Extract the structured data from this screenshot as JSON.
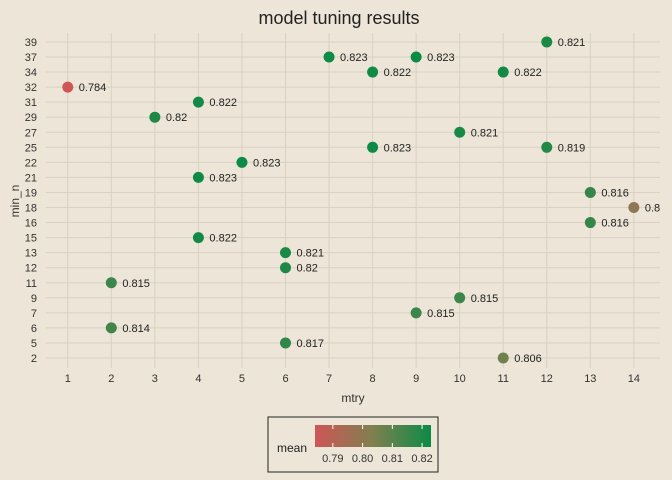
{
  "chart_data": {
    "type": "scatter",
    "title": "model tuning results",
    "xlabel": "mtry",
    "ylabel": "min_n",
    "x_ticks": [
      1,
      2,
      3,
      4,
      5,
      6,
      7,
      8,
      9,
      10,
      11,
      12,
      13,
      14
    ],
    "y_ticks": [
      2,
      5,
      6,
      7,
      9,
      11,
      12,
      13,
      15,
      16,
      18,
      19,
      21,
      22,
      25,
      27,
      29,
      31,
      32,
      34,
      37,
      39
    ],
    "grid": true,
    "legend": {
      "title": "mean",
      "placement": "bottom",
      "range": [
        0.784,
        0.823
      ],
      "ticks": [
        "0.79",
        "0.80",
        "0.81",
        "0.82"
      ],
      "colors": {
        "low": "#cf5656",
        "mid": "#7f8050",
        "high": "#0d8a45"
      }
    },
    "points": [
      {
        "mtry": 12,
        "min_n": 39,
        "mean": 0.821,
        "label": "0.821"
      },
      {
        "mtry": 7,
        "min_n": 37,
        "mean": 0.823,
        "label": "0.823"
      },
      {
        "mtry": 9,
        "min_n": 37,
        "mean": 0.823,
        "label": "0.823"
      },
      {
        "mtry": 8,
        "min_n": 34,
        "mean": 0.822,
        "label": "0.822"
      },
      {
        "mtry": 11,
        "min_n": 34,
        "mean": 0.822,
        "label": "0.822"
      },
      {
        "mtry": 1,
        "min_n": 32,
        "mean": 0.784,
        "label": "0.784"
      },
      {
        "mtry": 4,
        "min_n": 31,
        "mean": 0.822,
        "label": "0.822"
      },
      {
        "mtry": 3,
        "min_n": 29,
        "mean": 0.82,
        "label": "0.82"
      },
      {
        "mtry": 10,
        "min_n": 27,
        "mean": 0.821,
        "label": "0.821"
      },
      {
        "mtry": 8,
        "min_n": 25,
        "mean": 0.823,
        "label": "0.823"
      },
      {
        "mtry": 12,
        "min_n": 25,
        "mean": 0.819,
        "label": "0.819"
      },
      {
        "mtry": 5,
        "min_n": 22,
        "mean": 0.823,
        "label": "0.823"
      },
      {
        "mtry": 4,
        "min_n": 21,
        "mean": 0.823,
        "label": "0.823"
      },
      {
        "mtry": 13,
        "min_n": 19,
        "mean": 0.816,
        "label": "0.816"
      },
      {
        "mtry": 14,
        "min_n": 18,
        "mean": 0.8,
        "label": "0.8"
      },
      {
        "mtry": 13,
        "min_n": 16,
        "mean": 0.816,
        "label": "0.816"
      },
      {
        "mtry": 4,
        "min_n": 15,
        "mean": 0.822,
        "label": "0.822"
      },
      {
        "mtry": 6,
        "min_n": 13,
        "mean": 0.821,
        "label": "0.821"
      },
      {
        "mtry": 6,
        "min_n": 12,
        "mean": 0.82,
        "label": "0.82"
      },
      {
        "mtry": 2,
        "min_n": 11,
        "mean": 0.815,
        "label": "0.815"
      },
      {
        "mtry": 10,
        "min_n": 9,
        "mean": 0.815,
        "label": "0.815"
      },
      {
        "mtry": 9,
        "min_n": 7,
        "mean": 0.815,
        "label": "0.815"
      },
      {
        "mtry": 2,
        "min_n": 6,
        "mean": 0.814,
        "label": "0.814"
      },
      {
        "mtry": 6,
        "min_n": 5,
        "mean": 0.817,
        "label": "0.817"
      },
      {
        "mtry": 11,
        "min_n": 2,
        "mean": 0.806,
        "label": "0.806"
      }
    ]
  }
}
